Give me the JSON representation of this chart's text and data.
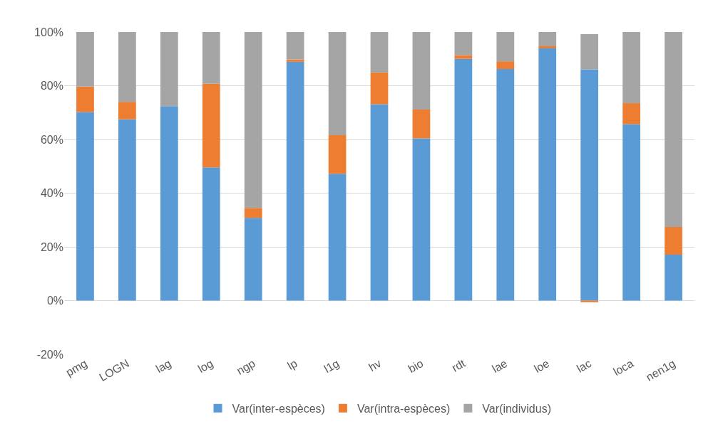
{
  "chart_data": {
    "type": "bar",
    "stacked": true,
    "categories": [
      "pmg",
      "LOGN",
      "lag",
      "log",
      "ngp",
      "lp",
      "l1g",
      "hv",
      "bio",
      "rdt",
      "lae",
      "loe",
      "lac",
      "loca",
      "nen1g"
    ],
    "series": [
      {
        "name": "Var(inter-espèces)",
        "color": "#5b9bd5",
        "values": [
          70.2,
          67.5,
          72.4,
          49.6,
          30.8,
          88.9,
          47.2,
          73.1,
          60.4,
          90.0,
          86.2,
          93.9,
          86.1,
          65.7,
          17.1
        ]
      },
      {
        "name": "Var(intra-espèces)",
        "color": "#ed7d31",
        "values": [
          9.5,
          6.5,
          0,
          31.1,
          3.7,
          0.9,
          14.4,
          11.9,
          10.7,
          1.4,
          2.9,
          0.8,
          -0.6,
          7.8,
          10.3
        ]
      },
      {
        "name": "Var(individus)",
        "color": "#a5a5a5",
        "values": [
          20.3,
          26.0,
          27.6,
          19.3,
          65.5,
          10.2,
          38.4,
          15.0,
          28.9,
          8.6,
          10.9,
          5.3,
          13.1,
          26.5,
          72.6
        ]
      }
    ],
    "ylim": [
      -20,
      100
    ],
    "yticks": [
      {
        "value": -20,
        "label": "-20%"
      },
      {
        "value": 0,
        "label": "0%"
      },
      {
        "value": 20,
        "label": "20%"
      },
      {
        "value": 40,
        "label": "40%"
      },
      {
        "value": 60,
        "label": "60%"
      },
      {
        "value": 80,
        "label": "80%"
      },
      {
        "value": 100,
        "label": "100%"
      }
    ],
    "grid": "y",
    "legend": "bottom"
  }
}
